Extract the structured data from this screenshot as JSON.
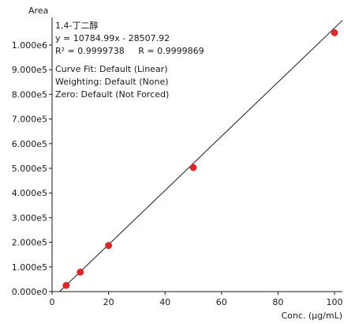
{
  "chart_data": {
    "type": "scatter",
    "title": "",
    "xlabel": "Conc. (µg/mL)",
    "ylabel": "Area",
    "xlim": [
      0,
      105
    ],
    "ylim": [
      0,
      1100000
    ],
    "x_ticks": [
      0,
      20,
      40,
      60,
      80,
      100
    ],
    "x_tick_labels": [
      "0",
      "20",
      "40",
      "60",
      "80",
      "100"
    ],
    "y_ticks": [
      0,
      100000,
      200000,
      300000,
      400000,
      500000,
      600000,
      700000,
      800000,
      900000,
      1000000
    ],
    "y_tick_labels": [
      "0.000e0",
      "1.000e5",
      "2.000e5",
      "3.000e5",
      "4.000e5",
      "5.000e5",
      "6.000e5",
      "7.000e5",
      "8.000e5",
      "9.000e5",
      "1.000e6"
    ],
    "grid": false,
    "series": [
      {
        "x": [
          5,
          10,
          20,
          50,
          100
        ],
        "y": [
          25000,
          79000,
          187000,
          503000,
          1050000
        ],
        "color": "#e0282c"
      }
    ],
    "fit": {
      "slope": 10784.99,
      "intercept": -28507.92,
      "color": "#1a1a1a"
    },
    "annotations": [
      "1,4-丁二醇",
      "y = 10784.99x - 28507.92",
      "R² = 0.9999738     R = 0.9999869",
      "Curve Fit: Default (Linear)",
      "Weighting: Default (None)",
      "Zero: Default (Not Forced)"
    ]
  }
}
